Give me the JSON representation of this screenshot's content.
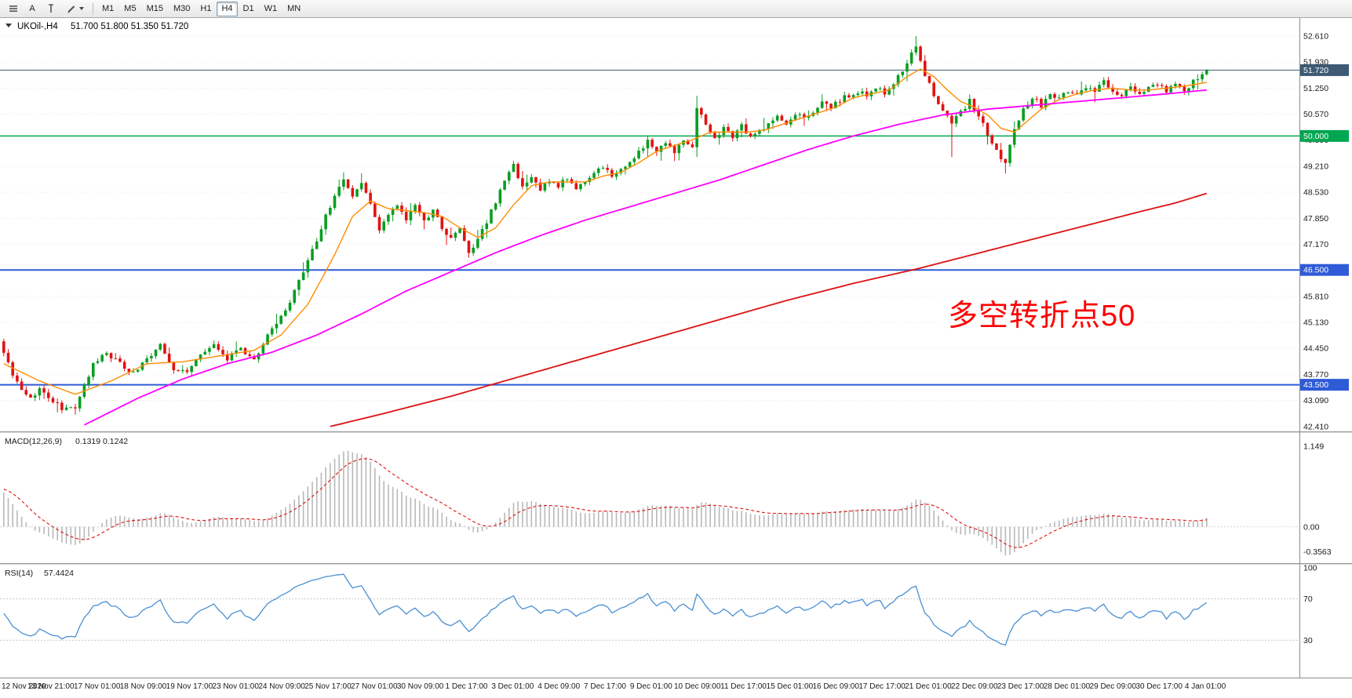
{
  "toolbar": {
    "tools": [
      {
        "id": "chart-list",
        "label": ""
      },
      {
        "id": "cursor",
        "label": "A"
      },
      {
        "id": "vertical-line",
        "label": ""
      },
      {
        "id": "draw",
        "label": ""
      }
    ],
    "timeframes": [
      "M1",
      "M5",
      "M15",
      "M30",
      "H1",
      "H4",
      "D1",
      "W1",
      "MN"
    ],
    "active_timeframe": "H4"
  },
  "chart": {
    "title": "UKOil-,H4",
    "ohlc": "51.700 51.800 51.350 51.720",
    "annotation": {
      "text": "多空转折点50",
      "color": "#ff0000"
    },
    "price_axis": {
      "ticks": [
        "52.610",
        "51.930",
        "51.250",
        "50.570",
        "49.890",
        "49.210",
        "48.530",
        "47.850",
        "47.170",
        "46.490",
        "45.810",
        "45.130",
        "44.450",
        "43.770",
        "43.090",
        "42.410"
      ]
    },
    "badges": [
      {
        "id": "current",
        "value": "51.720",
        "price": 51.72,
        "color": "#3e5a74"
      },
      {
        "id": "level-50",
        "value": "50.000",
        "price": 50.0,
        "color": "#00a651"
      },
      {
        "id": "level-46-5",
        "value": "46.500",
        "price": 46.5,
        "color": "#2f5bd7"
      },
      {
        "id": "level-43-5",
        "value": "43.500",
        "price": 43.5,
        "color": "#2f5bd7"
      }
    ],
    "time_axis": [
      "12 Nov 2020",
      "13 Nov 21:00",
      "17 Nov 01:00",
      "18 Nov 09:00",
      "19 Nov 17:00",
      "23 Nov 01:00",
      "24 Nov 09:00",
      "25 Nov 17:00",
      "27 Nov 01:00",
      "30 Nov 09:00",
      "1 Dec 17:00",
      "3 Dec 01:00",
      "4 Dec 09:00",
      "7 Dec 17:00",
      "9 Dec 01:00",
      "10 Dec 09:00",
      "11 Dec 17:00",
      "15 Dec 01:00",
      "16 Dec 09:00",
      "17 Dec 17:00",
      "21 Dec 01:00",
      "22 Dec 09:00",
      "23 Dec 17:00",
      "28 Dec 01:00",
      "29 Dec 09:00",
      "30 Dec 17:00",
      "4 Jan 01:00"
    ]
  },
  "macd": {
    "label": "MACD(12,26,9)",
    "values": "0.1319 0.1242",
    "axis": [
      "1.149",
      "0.00",
      "-0.3563"
    ]
  },
  "rsi": {
    "label": "RSI(14)",
    "value": "57.4424",
    "axis": [
      "100",
      "70",
      "30"
    ]
  },
  "chart_data": {
    "type": "candlestick",
    "symbol": "UKOil-",
    "timeframe": "H4",
    "bars": 270,
    "price_range": [
      42.41,
      52.61
    ],
    "up_color": "#089e22",
    "down_color": "#e11212",
    "levels": [
      {
        "price": 51.72,
        "label": "51.720",
        "style": "current-price"
      },
      {
        "price": 50.0,
        "label": "50.000",
        "style": "green-line"
      },
      {
        "price": 46.5,
        "label": "46.500",
        "style": "blue-line"
      },
      {
        "price": 43.5,
        "label": "43.500",
        "style": "blue-line"
      }
    ],
    "close_anchors": [
      [
        0,
        44.35
      ],
      [
        2,
        43.75
      ],
      [
        4,
        43.3
      ],
      [
        6,
        43.15
      ],
      [
        8,
        43.4
      ],
      [
        10,
        43.1
      ],
      [
        13,
        42.9
      ],
      [
        16,
        42.85
      ],
      [
        18,
        43.5
      ],
      [
        20,
        44.05
      ],
      [
        23,
        44.35
      ],
      [
        26,
        44.05
      ],
      [
        29,
        43.8
      ],
      [
        32,
        44.2
      ],
      [
        35,
        44.5
      ],
      [
        38,
        43.95
      ],
      [
        41,
        43.8
      ],
      [
        44,
        44.25
      ],
      [
        47,
        44.5
      ],
      [
        50,
        44.2
      ],
      [
        53,
        44.4
      ],
      [
        56,
        44.15
      ],
      [
        58,
        44.6
      ],
      [
        61,
        45.1
      ],
      [
        64,
        45.7
      ],
      [
        67,
        46.5
      ],
      [
        70,
        47.3
      ],
      [
        72,
        47.9
      ],
      [
        74,
        48.4
      ],
      [
        76,
        48.85
      ],
      [
        78,
        48.45
      ],
      [
        80,
        48.8
      ],
      [
        82,
        48.2
      ],
      [
        84,
        47.6
      ],
      [
        86,
        47.95
      ],
      [
        88,
        48.25
      ],
      [
        90,
        47.85
      ],
      [
        92,
        48.15
      ],
      [
        94,
        47.75
      ],
      [
        96,
        48.05
      ],
      [
        98,
        47.6
      ],
      [
        100,
        47.3
      ],
      [
        102,
        47.55
      ],
      [
        104,
        47.0
      ],
      [
        106,
        47.3
      ],
      [
        108,
        47.75
      ],
      [
        110,
        48.3
      ],
      [
        112,
        48.9
      ],
      [
        114,
        49.2
      ],
      [
        116,
        48.7
      ],
      [
        118,
        48.9
      ],
      [
        120,
        48.6
      ],
      [
        122,
        48.85
      ],
      [
        124,
        48.7
      ],
      [
        126,
        48.9
      ],
      [
        128,
        48.65
      ],
      [
        130,
        48.85
      ],
      [
        132,
        49.05
      ],
      [
        134,
        49.2
      ],
      [
        136,
        48.95
      ],
      [
        138,
        49.1
      ],
      [
        140,
        49.35
      ],
      [
        142,
        49.55
      ],
      [
        144,
        49.9
      ],
      [
        146,
        49.65
      ],
      [
        148,
        49.85
      ],
      [
        150,
        49.6
      ],
      [
        152,
        49.95
      ],
      [
        154,
        49.7
      ],
      [
        155,
        50.75
      ],
      [
        157,
        50.25
      ],
      [
        159,
        49.95
      ],
      [
        161,
        50.2
      ],
      [
        163,
        50.0
      ],
      [
        165,
        50.3
      ],
      [
        167,
        49.95
      ],
      [
        169,
        50.15
      ],
      [
        171,
        50.3
      ],
      [
        173,
        50.55
      ],
      [
        175,
        50.35
      ],
      [
        177,
        50.55
      ],
      [
        179,
        50.45
      ],
      [
        181,
        50.65
      ],
      [
        183,
        50.85
      ],
      [
        185,
        50.75
      ],
      [
        187,
        50.95
      ],
      [
        189,
        51.05
      ],
      [
        191,
        51.15
      ],
      [
        193,
        51.05
      ],
      [
        195,
        51.2
      ],
      [
        197,
        51.15
      ],
      [
        199,
        51.35
      ],
      [
        201,
        51.7
      ],
      [
        203,
        52.15
      ],
      [
        204,
        52.4
      ],
      [
        206,
        51.6
      ],
      [
        208,
        51.05
      ],
      [
        210,
        50.7
      ],
      [
        212,
        50.35
      ],
      [
        214,
        50.6
      ],
      [
        216,
        50.9
      ],
      [
        218,
        50.55
      ],
      [
        220,
        50.05
      ],
      [
        222,
        49.65
      ],
      [
        224,
        49.25
      ],
      [
        226,
        50.2
      ],
      [
        228,
        50.7
      ],
      [
        230,
        51.0
      ],
      [
        232,
        50.8
      ],
      [
        234,
        51.1
      ],
      [
        236,
        51.0
      ],
      [
        238,
        51.2
      ],
      [
        240,
        51.1
      ],
      [
        242,
        51.3
      ],
      [
        244,
        51.2
      ],
      [
        246,
        51.4
      ],
      [
        248,
        51.2
      ],
      [
        250,
        51.05
      ],
      [
        252,
        51.3
      ],
      [
        254,
        51.15
      ],
      [
        256,
        51.25
      ],
      [
        258,
        51.4
      ],
      [
        260,
        51.2
      ],
      [
        262,
        51.35
      ],
      [
        264,
        51.15
      ],
      [
        266,
        51.4
      ],
      [
        268,
        51.55
      ],
      [
        269,
        51.72
      ]
    ],
    "wick_overrides": {
      "16": {
        "low": 42.72
      },
      "76": {
        "high": 49.05
      },
      "104": {
        "low": 46.82
      },
      "114": {
        "high": 49.35
      },
      "155": {
        "high": 51.05,
        "low": 49.45
      },
      "204": {
        "high": 52.61
      },
      "212": {
        "low": 49.45
      },
      "224": {
        "low": 49.02
      }
    },
    "ma_lines": [
      {
        "name": "ma-fast-orange",
        "color": "#ff8c00",
        "width": 1.4,
        "anchors": [
          [
            0,
            44.05
          ],
          [
            8,
            43.6
          ],
          [
            16,
            43.25
          ],
          [
            24,
            43.6
          ],
          [
            32,
            44.05
          ],
          [
            40,
            44.1
          ],
          [
            48,
            44.25
          ],
          [
            56,
            44.4
          ],
          [
            62,
            44.8
          ],
          [
            68,
            45.6
          ],
          [
            74,
            46.9
          ],
          [
            78,
            47.9
          ],
          [
            82,
            48.3
          ],
          [
            86,
            48.1
          ],
          [
            90,
            48.05
          ],
          [
            94,
            48.0
          ],
          [
            98,
            47.9
          ],
          [
            102,
            47.6
          ],
          [
            106,
            47.35
          ],
          [
            110,
            47.6
          ],
          [
            114,
            48.2
          ],
          [
            118,
            48.7
          ],
          [
            122,
            48.8
          ],
          [
            126,
            48.8
          ],
          [
            130,
            48.8
          ],
          [
            134,
            48.95
          ],
          [
            138,
            49.05
          ],
          [
            142,
            49.3
          ],
          [
            146,
            49.6
          ],
          [
            150,
            49.75
          ],
          [
            154,
            49.9
          ],
          [
            158,
            50.1
          ],
          [
            162,
            50.1
          ],
          [
            166,
            50.1
          ],
          [
            170,
            50.15
          ],
          [
            174,
            50.3
          ],
          [
            178,
            50.45
          ],
          [
            182,
            50.6
          ],
          [
            186,
            50.75
          ],
          [
            190,
            51.0
          ],
          [
            194,
            51.1
          ],
          [
            198,
            51.2
          ],
          [
            202,
            51.55
          ],
          [
            205,
            51.75
          ],
          [
            208,
            51.55
          ],
          [
            211,
            51.2
          ],
          [
            214,
            50.9
          ],
          [
            217,
            50.75
          ],
          [
            220,
            50.55
          ],
          [
            223,
            50.2
          ],
          [
            226,
            50.1
          ],
          [
            229,
            50.4
          ],
          [
            232,
            50.7
          ],
          [
            236,
            50.95
          ],
          [
            240,
            51.1
          ],
          [
            244,
            51.2
          ],
          [
            248,
            51.25
          ],
          [
            252,
            51.2
          ],
          [
            256,
            51.2
          ],
          [
            260,
            51.25
          ],
          [
            264,
            51.3
          ],
          [
            269,
            51.4
          ]
        ]
      },
      {
        "name": "ma-mid-magenta",
        "color": "#ff00ff",
        "width": 1.8,
        "anchors": [
          [
            18,
            42.45
          ],
          [
            30,
            43.15
          ],
          [
            40,
            43.65
          ],
          [
            50,
            44.05
          ],
          [
            60,
            44.35
          ],
          [
            70,
            44.8
          ],
          [
            80,
            45.35
          ],
          [
            90,
            45.95
          ],
          [
            100,
            46.45
          ],
          [
            110,
            46.95
          ],
          [
            120,
            47.4
          ],
          [
            130,
            47.8
          ],
          [
            140,
            48.15
          ],
          [
            150,
            48.5
          ],
          [
            160,
            48.85
          ],
          [
            170,
            49.25
          ],
          [
            180,
            49.65
          ],
          [
            190,
            50.0
          ],
          [
            200,
            50.3
          ],
          [
            210,
            50.55
          ],
          [
            220,
            50.7
          ],
          [
            230,
            50.8
          ],
          [
            240,
            50.9
          ],
          [
            250,
            51.0
          ],
          [
            260,
            51.1
          ],
          [
            269,
            51.2
          ]
        ]
      },
      {
        "name": "ma-slow-red",
        "color": "#dd1111",
        "width": 1.8,
        "anchors": [
          [
            73,
            42.41
          ],
          [
            85,
            42.75
          ],
          [
            100,
            43.2
          ],
          [
            115,
            43.7
          ],
          [
            130,
            44.2
          ],
          [
            145,
            44.7
          ],
          [
            160,
            45.2
          ],
          [
            175,
            45.7
          ],
          [
            190,
            46.15
          ],
          [
            205,
            46.55
          ],
          [
            215,
            46.85
          ],
          [
            225,
            47.15
          ],
          [
            235,
            47.45
          ],
          [
            245,
            47.75
          ],
          [
            255,
            48.05
          ],
          [
            262,
            48.25
          ],
          [
            269,
            48.5
          ]
        ]
      }
    ],
    "macd": {
      "left_edge_value": 0.55,
      "peak": 1.149,
      "min": -0.3563,
      "last_main": 0.1319,
      "last_signal": 0.1242,
      "signal_color": "#dd1111",
      "hist_color": "#b8b8b8"
    },
    "rsi": {
      "left_edge_value": 56,
      "last": 57.4424,
      "levels": [
        70,
        30
      ],
      "color": "#4a90d2"
    }
  }
}
